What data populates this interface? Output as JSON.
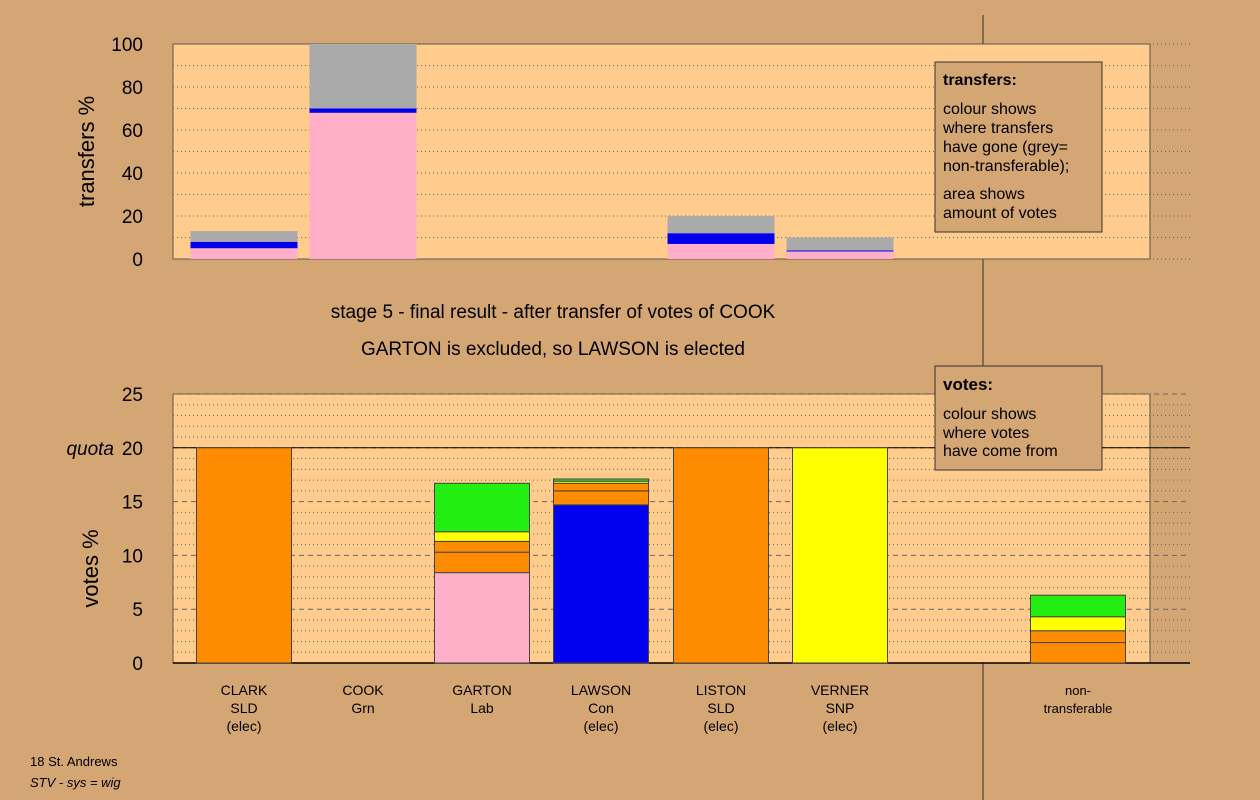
{
  "title_lines": [
    "stage 5 - final result - after transfer of votes of COOK",
    "GARTON is excluded, so LAWSON is elected"
  ],
  "footer": {
    "line1": "18 St. Andrews",
    "line2": "STV - sys = wig"
  },
  "legend_transfers": {
    "heading": "transfers:",
    "lines": [
      "colour shows",
      "where transfers",
      "have gone (grey=",
      "non-transferable);"
    ],
    "lines2": [
      "area shows",
      "amount of votes"
    ]
  },
  "legend_votes": {
    "heading": "votes:",
    "lines": [
      "colour shows",
      "where votes",
      "have come from"
    ]
  },
  "colors": {
    "background": "#d4a673",
    "panel": "#ffcc8e",
    "SLD": "#ff8c00",
    "Grn": "#22ee11",
    "Lab": "#ffb0c8",
    "Con": "#0000ee",
    "SNP": "#ffff00",
    "nontransferable": "#aaaaaa"
  },
  "chart_data": [
    {
      "type": "bar",
      "stacked": true,
      "ylabel": "transfers %",
      "ylim": [
        0,
        100
      ],
      "yticks": [
        0,
        20,
        40,
        60,
        80,
        100
      ],
      "categories": [
        "CLARK",
        "COOK",
        "GARTON",
        "LAWSON",
        "LISTON",
        "VERNER"
      ],
      "segments": [
        [
          {
            "party": "Lab",
            "value": 5
          },
          {
            "party": "Con",
            "value": 3
          },
          {
            "party": "nontransferable",
            "value": 5
          }
        ],
        [
          {
            "party": "Lab",
            "value": 68
          },
          {
            "party": "Con",
            "value": 2
          },
          {
            "party": "nontransferable",
            "value": 30
          }
        ],
        [],
        [],
        [
          {
            "party": "Lab",
            "value": 7
          },
          {
            "party": "Con",
            "value": 5
          },
          {
            "party": "nontransferable",
            "value": 8
          }
        ],
        [
          {
            "party": "Lab",
            "value": 3.5
          },
          {
            "party": "Con",
            "value": 0.5
          },
          {
            "party": "nontransferable",
            "value": 6
          }
        ]
      ]
    },
    {
      "type": "bar",
      "stacked": true,
      "ylabel": "votes %",
      "ylim": [
        0,
        25
      ],
      "yticks": [
        0,
        5,
        10,
        15,
        20,
        25
      ],
      "quota": 20,
      "quota_label": "quota",
      "categories": [
        {
          "name": "CLARK",
          "party": "SLD",
          "status": "(elec)"
        },
        {
          "name": "COOK",
          "party": "Grn",
          "status": ""
        },
        {
          "name": "GARTON",
          "party": "Lab",
          "status": ""
        },
        {
          "name": "LAWSON",
          "party": "Con",
          "status": "(elec)"
        },
        {
          "name": "LISTON",
          "party": "SLD",
          "status": "(elec)"
        },
        {
          "name": "VERNER",
          "party": "SNP",
          "status": "(elec)"
        },
        {
          "name": "non-",
          "party": "transferable",
          "status": ""
        }
      ],
      "segments": [
        [
          {
            "party": "SLD",
            "value": 20
          }
        ],
        [],
        [
          {
            "party": "Lab",
            "value": 8.4
          },
          {
            "party": "SLD",
            "value": 1.9
          },
          {
            "party": "SLD",
            "value": 1
          },
          {
            "party": "SNP",
            "value": 0.9
          },
          {
            "party": "Grn",
            "value": 4.5
          }
        ],
        [
          {
            "party": "Con",
            "value": 14.7
          },
          {
            "party": "SLD",
            "value": 1.3
          },
          {
            "party": "SLD",
            "value": 0.7
          },
          {
            "party": "SNP",
            "value": 0.2
          },
          {
            "party": "Grn",
            "value": 0.2
          }
        ],
        [
          {
            "party": "SLD",
            "value": 20
          }
        ],
        [
          {
            "party": "SNP",
            "value": 20
          }
        ],
        [
          {
            "party": "SLD",
            "value": 1.9
          },
          {
            "party": "SLD",
            "value": 1.1
          },
          {
            "party": "SNP",
            "value": 1.3
          },
          {
            "party": "Grn",
            "value": 2
          }
        ]
      ]
    }
  ]
}
